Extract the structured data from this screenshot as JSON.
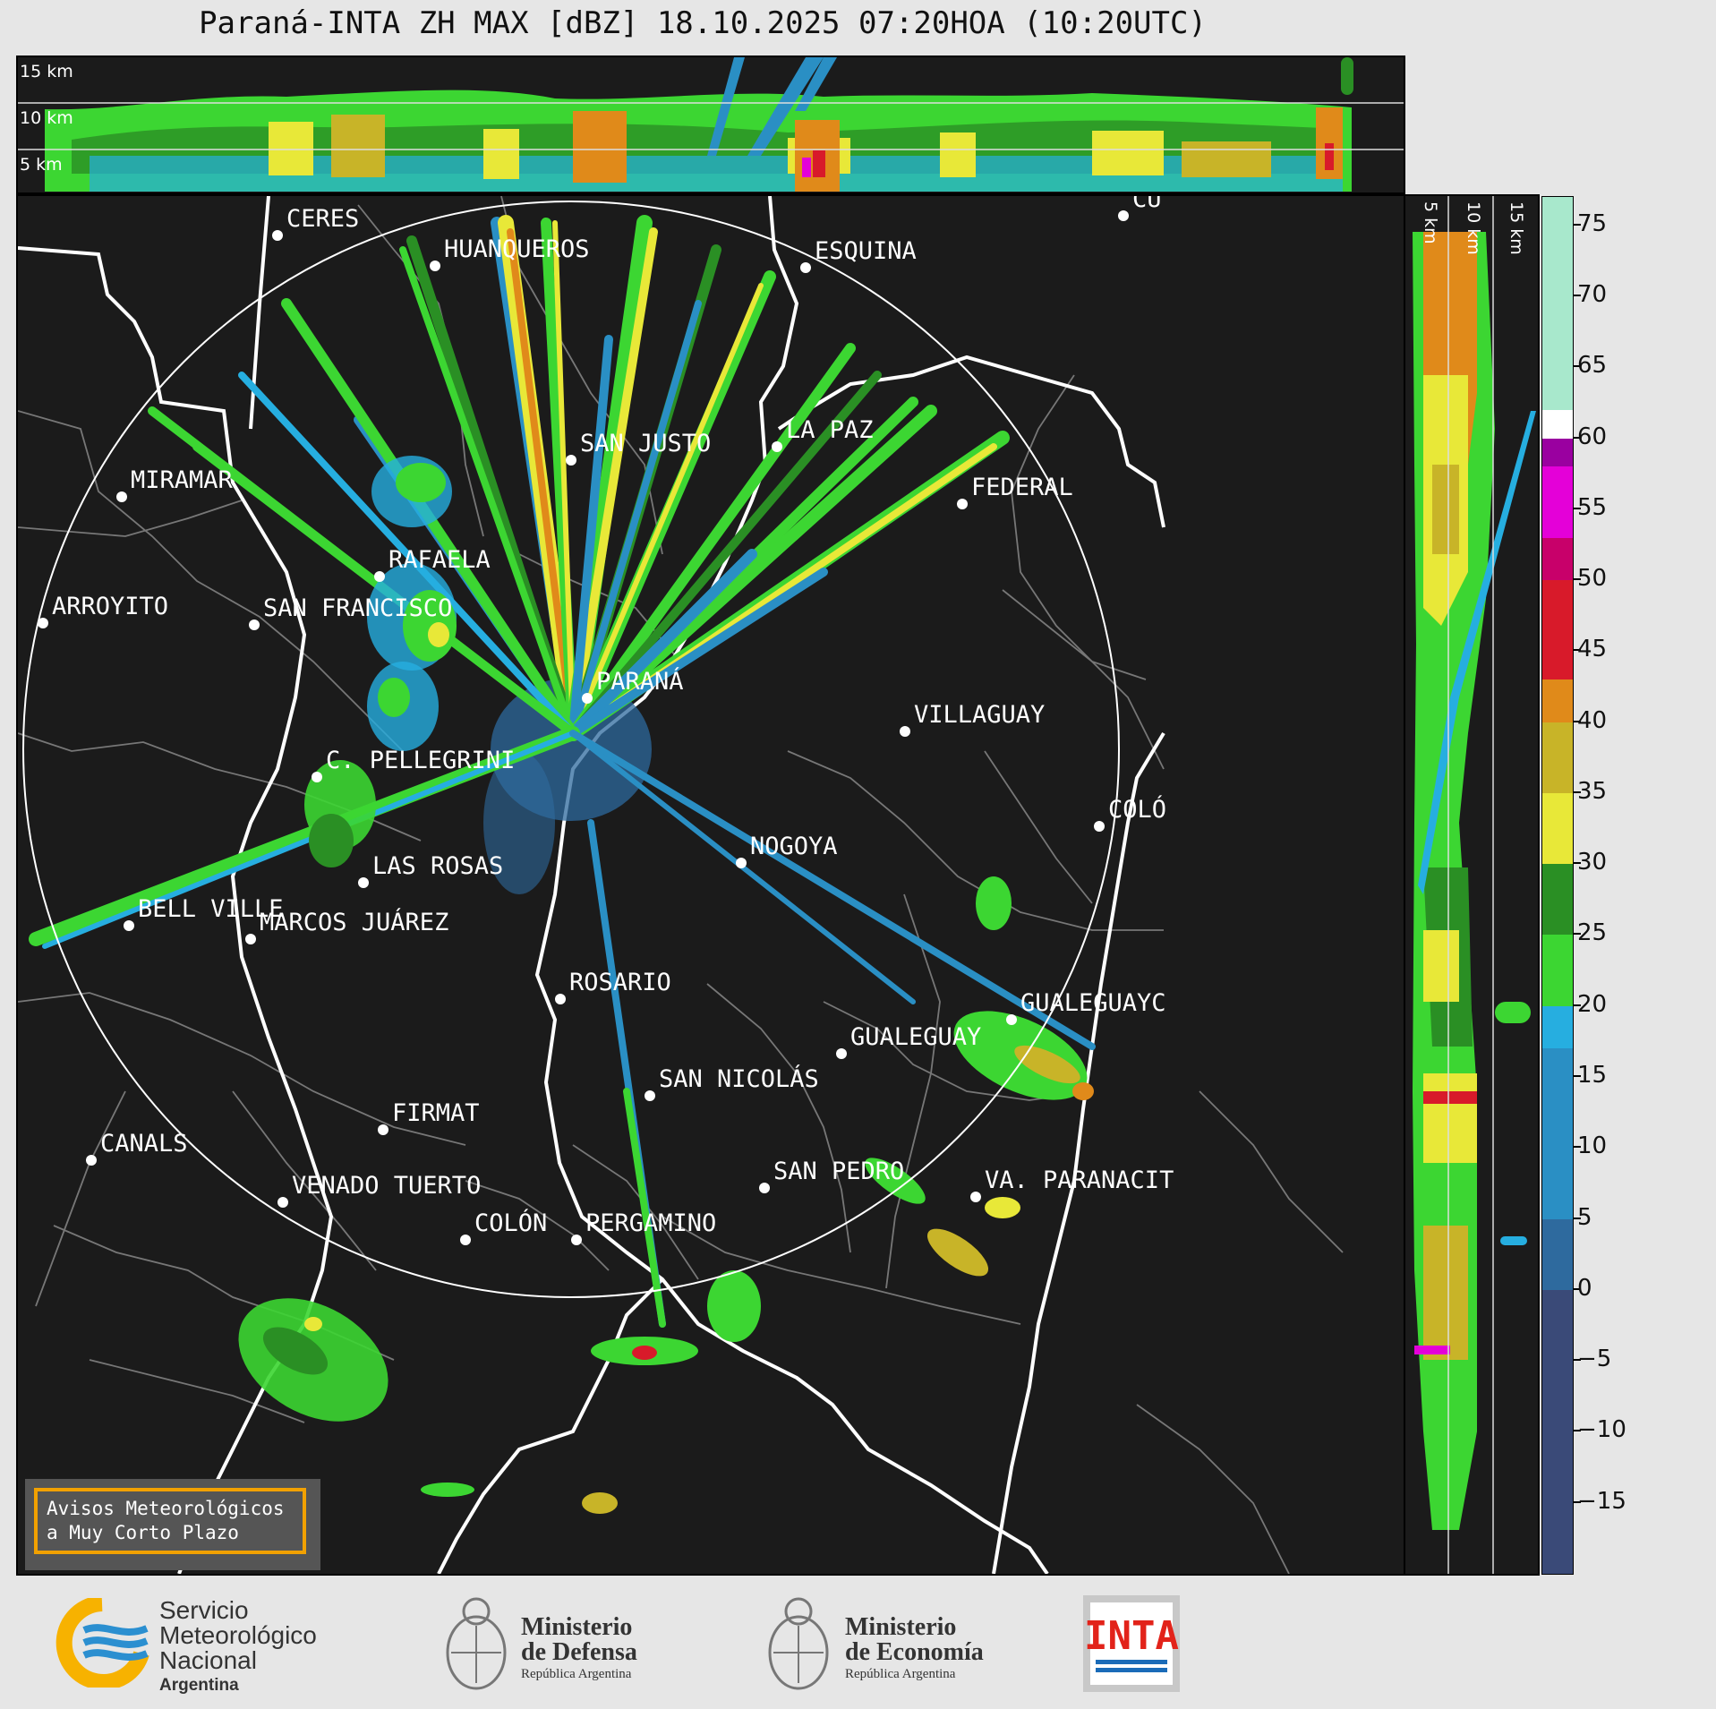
{
  "title": "Paraná-INTA ZH MAX [dBZ] 18.10.2025 07:20HOA (10:20UTC)",
  "top_section": {
    "km_labels": [
      "15 km",
      "10 km",
      "5 km"
    ]
  },
  "right_section": {
    "km_labels": [
      "5 km",
      "10 km",
      "15 km"
    ]
  },
  "colorbar": {
    "ticks": [
      "75",
      "70",
      "65",
      "60",
      "55",
      "50",
      "45",
      "40",
      "35",
      "30",
      "25",
      "20",
      "15",
      "10",
      "5",
      "0",
      "−5",
      "−10",
      "−15"
    ],
    "colors": {
      "n20_to_0": "#3a4a78",
      "0_to_5": "#2e6a9e",
      "5_to_17": "#2a8fc4",
      "17_to_20": "#26aee0",
      "20_to_25": "#3cd632",
      "25_to_30": "#2a8f24",
      "30_to_35": "#e8e838",
      "35_to_40": "#c8b428",
      "40_to_43": "#e08a1a",
      "43_to_50": "#d81a2a",
      "50_to_53": "#c8006a",
      "53_to_58": "#e400d8",
      "58_to_60": "#9a00a0",
      "60_to_62": "#ffffff",
      "62_to_77": "#a8e8cc"
    }
  },
  "cities": [
    {
      "name": "CERES"
    },
    {
      "name": "HUANQUEROS"
    },
    {
      "name": "ESQUINA"
    },
    {
      "name": "CU"
    },
    {
      "name": "SAN JUSTO"
    },
    {
      "name": "LA PAZ"
    },
    {
      "name": "MIRAMAR"
    },
    {
      "name": "FEDERAL"
    },
    {
      "name": "RAFAELA"
    },
    {
      "name": "ARROYITO"
    },
    {
      "name": "SAN FRANCISCO"
    },
    {
      "name": "PARANÁ"
    },
    {
      "name": "VILLAGUAY"
    },
    {
      "name": "C. PELLEGRINI"
    },
    {
      "name": "COLÓ"
    },
    {
      "name": "NOGOYA"
    },
    {
      "name": "LAS ROSAS"
    },
    {
      "name": "BELL VILLE"
    },
    {
      "name": "MARCOS JUÁREZ"
    },
    {
      "name": "ROSARIO"
    },
    {
      "name": "GUALEGUAYC"
    },
    {
      "name": "GUALEGUAY"
    },
    {
      "name": "SAN NICOLÁS"
    },
    {
      "name": "FIRMAT"
    },
    {
      "name": "CANALS"
    },
    {
      "name": "SAN PEDRO"
    },
    {
      "name": "VENADO TUERTO"
    },
    {
      "name": "VA. PARANACIT"
    },
    {
      "name": "COLÓN"
    },
    {
      "name": "PERGAMINO"
    }
  ],
  "notice": {
    "line1": "Avisos Meteorológicos",
    "line2": "a Muy Corto Plazo"
  },
  "logos": {
    "smn": {
      "line1": "Servicio",
      "line2": "Meteorológico",
      "line3": "Nacional",
      "line4": "Argentina"
    },
    "defensa": {
      "line1": "Ministerio",
      "line2": "de Defensa",
      "line3": "República Argentina"
    },
    "economia": {
      "line1": "Ministerio",
      "line2": "de Economía",
      "line3": "República Argentina"
    },
    "inta": {
      "text": "INTA"
    }
  }
}
